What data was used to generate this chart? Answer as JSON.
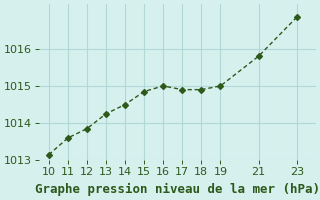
{
  "x": [
    10,
    11,
    12,
    13,
    14,
    15,
    16,
    17,
    18,
    19,
    21,
    23
  ],
  "y": [
    1013.15,
    1013.6,
    1013.85,
    1014.25,
    1014.5,
    1014.85,
    1015.0,
    1014.9,
    1014.9,
    1015.0,
    1015.8,
    1016.85
  ],
  "line_color": "#2d5a1b",
  "marker": "D",
  "marker_size": 3,
  "background_color": "#d6f0ee",
  "grid_color": "#b0d8d4",
  "xlabel": "Graphe pression niveau de la mer (hPa)",
  "xlabel_color": "#2d5a1b",
  "xlabel_fontsize": 9,
  "tick_color": "#2d5a1b",
  "tick_fontsize": 8,
  "xlim": [
    9.5,
    24
  ],
  "ylim": [
    1013.0,
    1017.2
  ],
  "yticks": [
    1013,
    1014,
    1015,
    1016
  ],
  "xticks": [
    10,
    11,
    12,
    13,
    14,
    15,
    16,
    17,
    18,
    19,
    21,
    23
  ]
}
